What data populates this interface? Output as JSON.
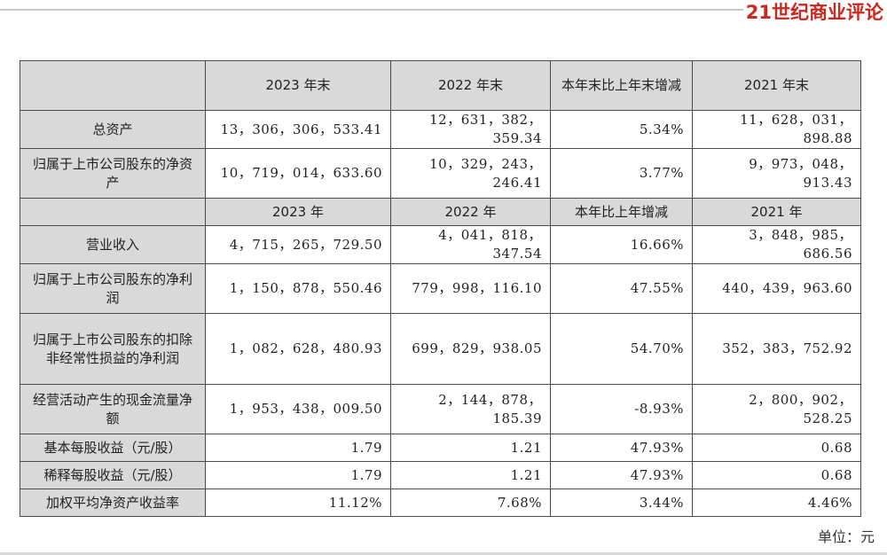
{
  "header": {
    "brand": "21世纪商业评论"
  },
  "table": {
    "section1_headers": [
      "2023 年末",
      "2022 年末",
      "本年末比上年末增减",
      "2021 年末"
    ],
    "section1_rows": [
      {
        "label": "总资产",
        "values": [
          "13，306，306，533.41",
          "12，631，382，359.34",
          "5.34%",
          "11，628，031，898.88"
        ]
      },
      {
        "label": "归属于上市公司股东的净资产",
        "values": [
          "10，719，014，633.60",
          "10，329，243，246.41",
          "3.77%",
          "9，973，048，913.43"
        ]
      }
    ],
    "section2_headers": [
      "2023 年",
      "2022 年",
      "本年比上年增减",
      "2021 年"
    ],
    "section2_rows": [
      {
        "label": "营业收入",
        "values": [
          "4，715，265，729.50",
          "4，041，818，347.54",
          "16.66%",
          "3，848，985，686.56"
        ]
      },
      {
        "label": "归属于上市公司股东的净利润",
        "values": [
          "1，150，878，550.46",
          "779，998，116.10",
          "47.55%",
          "440，439，963.60"
        ]
      },
      {
        "label": "归属于上市公司股东的扣除非经常性损益的净利润",
        "values": [
          "1，082，628，480.93",
          "699，829，938.05",
          "54.70%",
          "352，383，752.92"
        ]
      },
      {
        "label": "经营活动产生的现金流量净额",
        "values": [
          "1，953，438，009.50",
          "2，144，878，185.39",
          "-8.93%",
          "2，800，902，528.25"
        ]
      },
      {
        "label": "基本每股收益（元/股）",
        "values": [
          "1.79",
          "1.21",
          "47.93%",
          "0.68"
        ]
      },
      {
        "label": "稀释每股收益（元/股）",
        "values": [
          "1.79",
          "1.21",
          "47.93%",
          "0.68"
        ]
      },
      {
        "label": "加权平均净资产收益率",
        "values": [
          "11.12%",
          "7.68%",
          "3.44%",
          "4.46%"
        ]
      }
    ]
  },
  "footer": {
    "unit": "单位：元"
  }
}
